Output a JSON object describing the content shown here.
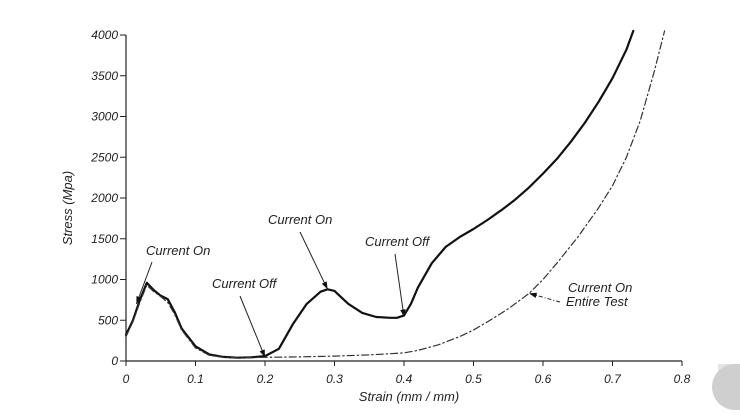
{
  "chart_data": {
    "type": "line",
    "xlabel": "Strain (mm / mm)",
    "ylabel": "Stress (Mpa)",
    "xlim": [
      0,
      0.8
    ],
    "ylim": [
      0,
      4000
    ],
    "x_ticks": [
      "0",
      "0.1",
      "0.2",
      "0.3",
      "0.4",
      "0.5",
      "0.6",
      "0.7",
      "0.8"
    ],
    "y_ticks": [
      "0",
      "500",
      "1000",
      "1500",
      "2000",
      "2500",
      "3000",
      "3500",
      "4000"
    ],
    "grid": false,
    "series": [
      {
        "style": "solid",
        "color": "#111111",
        "x": [
          0,
          0.01,
          0.02,
          0.03,
          0.04,
          0.05,
          0.06,
          0.07,
          0.08,
          0.1,
          0.12,
          0.14,
          0.16,
          0.18,
          0.2,
          0.22,
          0.24,
          0.26,
          0.28,
          0.29,
          0.3,
          0.31,
          0.32,
          0.34,
          0.36,
          0.38,
          0.39,
          0.4,
          0.41,
          0.42,
          0.44,
          0.46,
          0.48,
          0.5,
          0.52,
          0.54,
          0.56,
          0.58,
          0.6,
          0.62,
          0.64,
          0.66,
          0.68,
          0.7,
          0.72,
          0.73
        ],
        "y": [
          320,
          500,
          750,
          960,
          870,
          800,
          760,
          600,
          400,
          180,
          80,
          50,
          40,
          45,
          60,
          150,
          450,
          700,
          850,
          880,
          860,
          780,
          700,
          590,
          540,
          530,
          530,
          560,
          700,
          900,
          1200,
          1400,
          1520,
          1620,
          1730,
          1850,
          1980,
          2130,
          2300,
          2480,
          2690,
          2920,
          3180,
          3470,
          3820,
          4050
        ]
      },
      {
        "style": "dash-dot",
        "color": "#333333",
        "x": [
          0,
          0.01,
          0.02,
          0.03,
          0.04,
          0.05,
          0.06,
          0.07,
          0.08,
          0.1,
          0.12,
          0.14,
          0.16,
          0.18,
          0.2,
          0.25,
          0.3,
          0.35,
          0.4,
          0.42,
          0.45,
          0.48,
          0.5,
          0.52,
          0.55,
          0.58,
          0.6,
          0.62,
          0.65,
          0.68,
          0.7,
          0.72,
          0.74,
          0.76,
          0.775
        ],
        "y": [
          300,
          480,
          720,
          930,
          850,
          790,
          720,
          570,
          380,
          160,
          70,
          45,
          40,
          40,
          45,
          50,
          60,
          75,
          100,
          130,
          200,
          300,
          380,
          480,
          640,
          830,
          1000,
          1200,
          1520,
          1880,
          2150,
          2500,
          2950,
          3550,
          4050
        ]
      }
    ],
    "annotations": [
      {
        "text": "Current On",
        "target": [
          0.015,
          700
        ]
      },
      {
        "text": "Current Off",
        "target": [
          0.2,
          45
        ]
      },
      {
        "text": "Current On",
        "target": [
          0.29,
          880
        ]
      },
      {
        "text": "Current Off",
        "target": [
          0.4,
          540
        ]
      },
      {
        "text": "Current On",
        "text2": "Entire Test",
        "target": [
          0.58,
          830
        ]
      }
    ]
  }
}
